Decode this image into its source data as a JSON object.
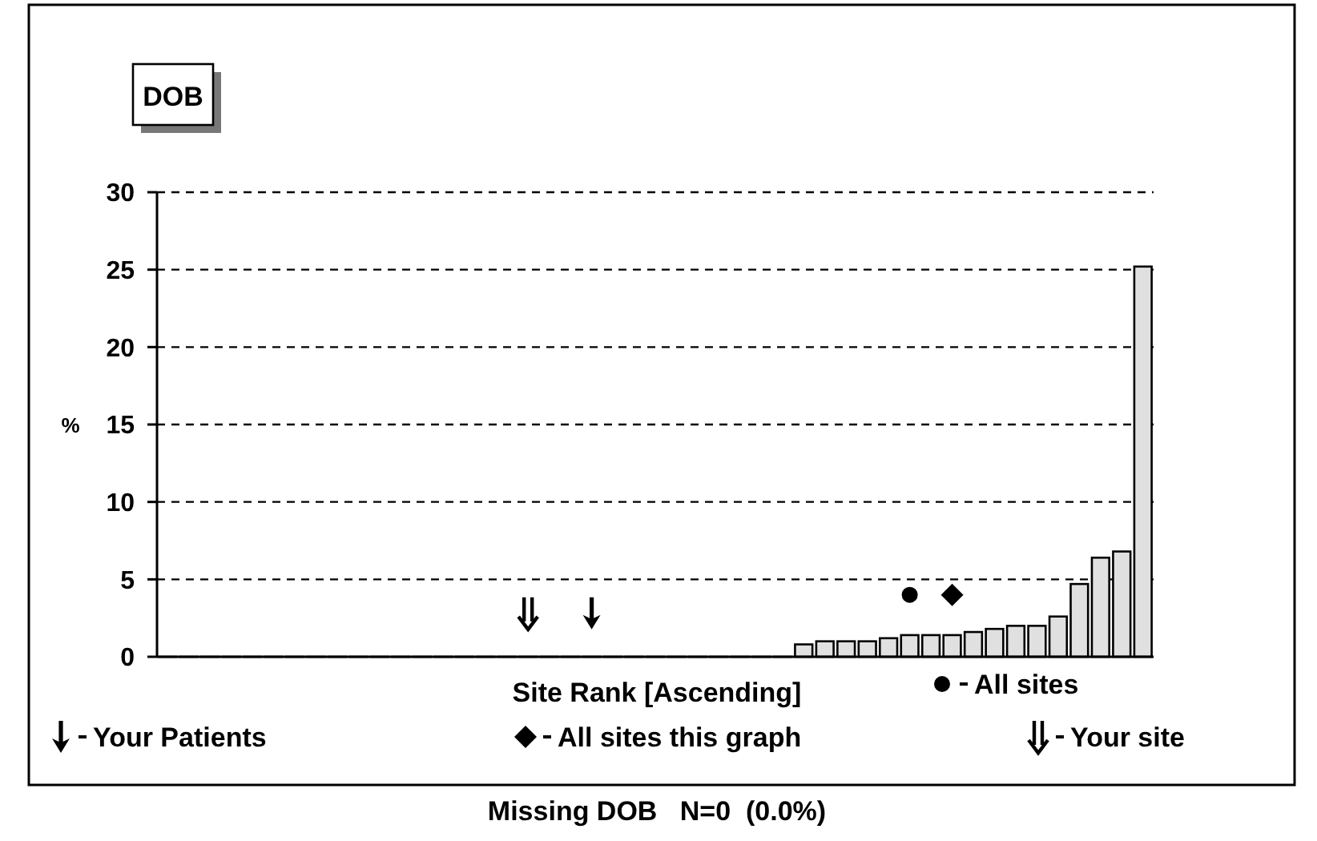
{
  "chart_data": {
    "type": "bar",
    "title": "DOB",
    "xlabel": "Site Rank [Ascending]",
    "ylabel": "%",
    "categories": [
      null,
      null,
      null,
      null,
      null,
      null,
      null,
      null,
      null,
      null,
      null,
      null,
      null,
      null,
      null,
      null,
      null,
      null,
      null,
      null,
      null,
      null,
      null,
      null,
      null,
      null,
      null,
      null,
      null,
      null,
      null,
      null,
      null,
      null,
      null,
      null,
      null,
      null,
      null,
      null,
      null,
      null,
      null,
      null,
      null,
      null,
      null
    ],
    "ylim": [
      0,
      30
    ],
    "yticks": [
      0,
      5,
      10,
      15,
      20,
      25,
      30
    ],
    "grid": "y",
    "legend": "bottom",
    "annotations": [
      "Missing DOB   N=0  (0.0%)"
    ],
    "series": [
      {
        "type": "bar",
        "color": "#e0e0e0",
        "values": [
          0,
          0,
          0,
          0,
          0,
          0,
          0,
          0,
          0,
          0,
          0,
          0,
          0,
          0,
          0,
          0,
          0,
          0,
          0,
          0,
          0,
          0,
          0,
          0,
          0,
          0,
          0,
          0,
          0,
          0,
          0.8,
          1.0,
          1.0,
          1.0,
          1.2,
          1.4,
          1.4,
          1.4,
          1.6,
          1.8,
          2.0,
          2.0,
          2.6,
          4.7,
          6.4,
          6.8,
          25.2
        ]
      },
      {
        "type": "scatter",
        "name": "All sites",
        "marker": "circle",
        "color": "#000000",
        "values": [
          null,
          null,
          null,
          null,
          null,
          null,
          null,
          null,
          null,
          null,
          null,
          null,
          null,
          null,
          null,
          null,
          null,
          null,
          null,
          null,
          null,
          null,
          null,
          null,
          null,
          null,
          null,
          null,
          null,
          null,
          null,
          null,
          null,
          null,
          null,
          4.0,
          null,
          null,
          null,
          null,
          null,
          null,
          null,
          null,
          null,
          null,
          null
        ]
      },
      {
        "type": "scatter",
        "name": "Your Patients",
        "color": "#000000",
        "values": [
          null,
          null,
          null,
          null,
          null,
          null,
          null,
          null,
          null,
          null,
          null,
          null,
          null,
          null,
          null,
          null,
          null,
          null,
          null,
          null,
          2.8,
          null,
          null,
          null,
          null,
          null,
          null,
          null,
          null,
          null,
          null,
          null,
          null,
          null,
          null,
          null,
          null,
          null,
          null,
          null,
          null,
          null,
          null,
          null,
          null,
          null,
          null
        ]
      },
      {
        "type": "scatter",
        "name": "All sites this graph",
        "marker": "diamond",
        "color": "#000000",
        "values": [
          null,
          null,
          null,
          null,
          null,
          null,
          null,
          null,
          null,
          null,
          null,
          null,
          null,
          null,
          null,
          null,
          null,
          null,
          null,
          null,
          null,
          null,
          null,
          null,
          null,
          null,
          null,
          null,
          null,
          null,
          null,
          null,
          null,
          null,
          null,
          null,
          null,
          4.0,
          null,
          null,
          null,
          null,
          null,
          null,
          null,
          null,
          null
        ]
      },
      {
        "type": "scatter",
        "name": "Your site",
        "color": "#000000",
        "values": [
          null,
          null,
          null,
          null,
          null,
          null,
          null,
          null,
          null,
          null,
          null,
          null,
          null,
          null,
          null,
          null,
          null,
          2.8,
          null,
          null,
          null,
          null,
          null,
          null,
          null,
          null,
          null,
          null,
          null,
          null,
          null,
          null,
          null,
          null,
          null,
          null,
          null,
          null,
          null,
          null,
          null,
          null,
          null,
          null,
          null,
          null,
          null
        ]
      }
    ]
  }
}
